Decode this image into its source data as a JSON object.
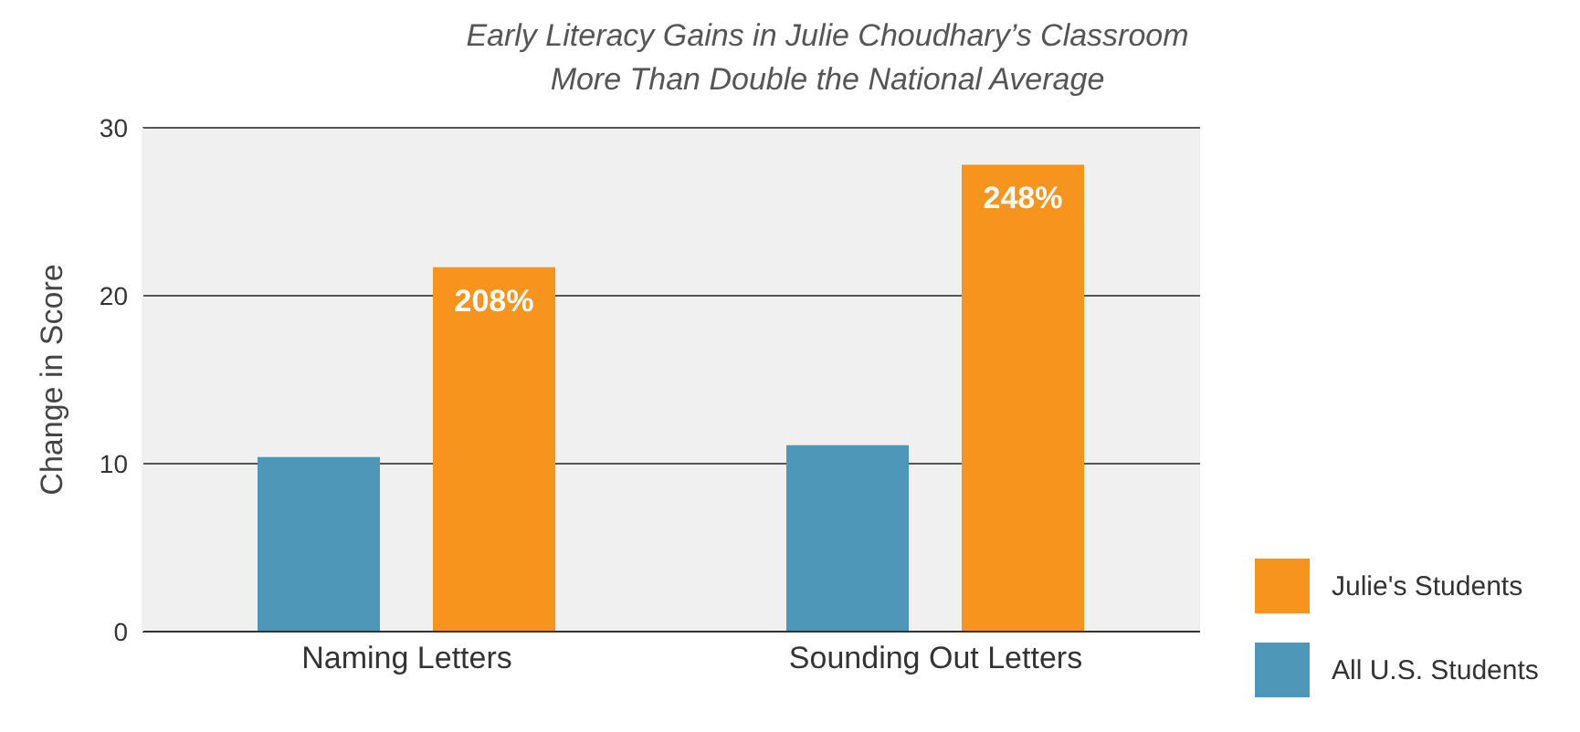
{
  "chart_data": {
    "type": "bar",
    "title": "Early Literacy Gains in Julie Choudhary’s Classroom More Than Double the National Average",
    "ylabel": "Change in Score",
    "categories": [
      "Naming Letters",
      "Sounding Out Letters"
    ],
    "series": [
      {
        "name": "All U.S. Students",
        "color": "#4f97b8",
        "values": [
          10.4,
          11.1
        ]
      },
      {
        "name": "Julie's Students",
        "color": "#f7941d",
        "values": [
          21.7,
          27.8
        ]
      }
    ],
    "annotations": [
      "208%",
      "248%"
    ],
    "ylim": [
      0,
      30
    ],
    "yticks": [
      0,
      10,
      20,
      30
    ],
    "grid": "y",
    "legend": "right"
  }
}
